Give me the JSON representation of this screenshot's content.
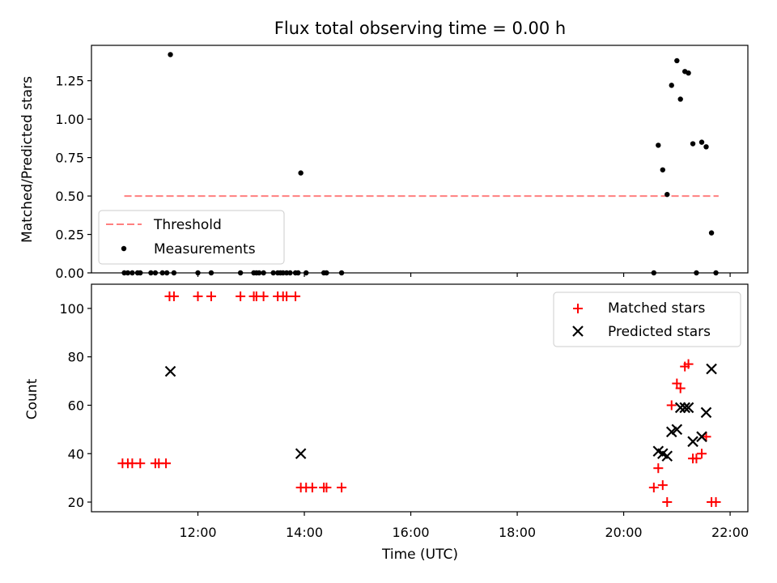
{
  "title": "Flux total observing time = 0.00 h",
  "chart_data": [
    {
      "type": "scatter",
      "ylabel": "Matched/Predicted stars",
      "xlabel": "",
      "xlim": [
        "10:00",
        "22:20"
      ],
      "ylim": [
        0,
        1.48
      ],
      "yticks": [
        "0.00",
        "0.25",
        "0.50",
        "0.75",
        "1.00",
        "1.25"
      ],
      "legend": {
        "placement": "lower-left",
        "entries": [
          "Threshold",
          "Measurements"
        ]
      },
      "threshold": {
        "name": "Threshold",
        "value": 0.5,
        "x_range": [
          "10:37",
          "21:47"
        ],
        "color": "#ff7f7f"
      },
      "series": [
        {
          "name": "Measurements",
          "color": "#000000",
          "points": [
            [
              "10:37",
              0
            ],
            [
              "10:41",
              0
            ],
            [
              "10:46",
              0
            ],
            [
              "10:52",
              0
            ],
            [
              "10:55",
              0
            ],
            [
              "11:07",
              0
            ],
            [
              "11:12",
              0
            ],
            [
              "11:20",
              0
            ],
            [
              "11:25",
              0
            ],
            [
              "11:29",
              1.42
            ],
            [
              "11:33",
              0
            ],
            [
              "12:00",
              0
            ],
            [
              "12:15",
              0
            ],
            [
              "12:48",
              0
            ],
            [
              "13:03",
              0
            ],
            [
              "13:06",
              0
            ],
            [
              "13:09",
              0
            ],
            [
              "13:14",
              0
            ],
            [
              "13:25",
              0
            ],
            [
              "13:30",
              0
            ],
            [
              "13:33",
              0
            ],
            [
              "13:36",
              0
            ],
            [
              "13:40",
              0
            ],
            [
              "13:44",
              0
            ],
            [
              "13:50",
              0
            ],
            [
              "13:53",
              0
            ],
            [
              "13:56",
              0.65
            ],
            [
              "14:02",
              0
            ],
            [
              "14:22",
              0
            ],
            [
              "14:25",
              0
            ],
            [
              "14:42",
              0
            ],
            [
              "20:34",
              0
            ],
            [
              "20:39",
              0.83
            ],
            [
              "20:44",
              0.67
            ],
            [
              "20:49",
              0.51
            ],
            [
              "20:54",
              1.22
            ],
            [
              "21:00",
              1.38
            ],
            [
              "21:04",
              1.13
            ],
            [
              "21:09",
              1.31
            ],
            [
              "21:13",
              1.3
            ],
            [
              "21:18",
              0.84
            ],
            [
              "21:22",
              0
            ],
            [
              "21:28",
              0.85
            ],
            [
              "21:33",
              0.82
            ],
            [
              "21:39",
              0.26
            ],
            [
              "21:44",
              0
            ]
          ]
        }
      ]
    },
    {
      "type": "scatter",
      "ylabel": "Count",
      "xlabel": "Time (UTC)",
      "xlim": [
        "10:00",
        "22:20"
      ],
      "ylim": [
        16,
        110
      ],
      "yticks": [
        "20",
        "40",
        "60",
        "80",
        "100"
      ],
      "xticks": [
        "12:00",
        "14:00",
        "16:00",
        "18:00",
        "20:00",
        "22:00"
      ],
      "legend": {
        "placement": "top-right",
        "entries": [
          "Matched stars",
          "Predicted stars"
        ]
      },
      "series": [
        {
          "name": "Matched stars",
          "color": "#ff0000",
          "marker": "plus",
          "points": [
            [
              "10:35",
              36
            ],
            [
              "10:41",
              36
            ],
            [
              "10:46",
              36
            ],
            [
              "10:55",
              36
            ],
            [
              "11:12",
              36
            ],
            [
              "11:16",
              36
            ],
            [
              "11:24",
              36
            ],
            [
              "11:28",
              105
            ],
            [
              "11:33",
              105
            ],
            [
              "12:00",
              105
            ],
            [
              "12:15",
              105
            ],
            [
              "12:48",
              105
            ],
            [
              "13:03",
              105
            ],
            [
              "13:06",
              105
            ],
            [
              "13:14",
              105
            ],
            [
              "13:30",
              105
            ],
            [
              "13:36",
              105
            ],
            [
              "13:40",
              105
            ],
            [
              "13:50",
              105
            ],
            [
              "13:56",
              26
            ],
            [
              "14:02",
              26
            ],
            [
              "14:09",
              26
            ],
            [
              "14:22",
              26
            ],
            [
              "14:25",
              26
            ],
            [
              "14:42",
              26
            ],
            [
              "20:34",
              26
            ],
            [
              "20:39",
              34
            ],
            [
              "20:44",
              27
            ],
            [
              "20:49",
              20
            ],
            [
              "20:54",
              60
            ],
            [
              "21:00",
              69
            ],
            [
              "21:04",
              67
            ],
            [
              "21:09",
              76
            ],
            [
              "21:13",
              77
            ],
            [
              "21:18",
              38
            ],
            [
              "21:22",
              38
            ],
            [
              "21:28",
              40
            ],
            [
              "21:33",
              47
            ],
            [
              "21:39",
              20
            ],
            [
              "21:44",
              20
            ]
          ]
        },
        {
          "name": "Predicted stars",
          "color": "#000000",
          "marker": "x",
          "points": [
            [
              "11:29",
              74
            ],
            [
              "13:56",
              40
            ],
            [
              "20:39",
              41
            ],
            [
              "20:44",
              40
            ],
            [
              "20:49",
              39
            ],
            [
              "20:54",
              49
            ],
            [
              "21:00",
              50
            ],
            [
              "21:04",
              59
            ],
            [
              "21:09",
              59
            ],
            [
              "21:13",
              59
            ],
            [
              "21:18",
              45
            ],
            [
              "21:28",
              47
            ],
            [
              "21:33",
              57
            ],
            [
              "21:39",
              75
            ]
          ]
        }
      ]
    }
  ]
}
